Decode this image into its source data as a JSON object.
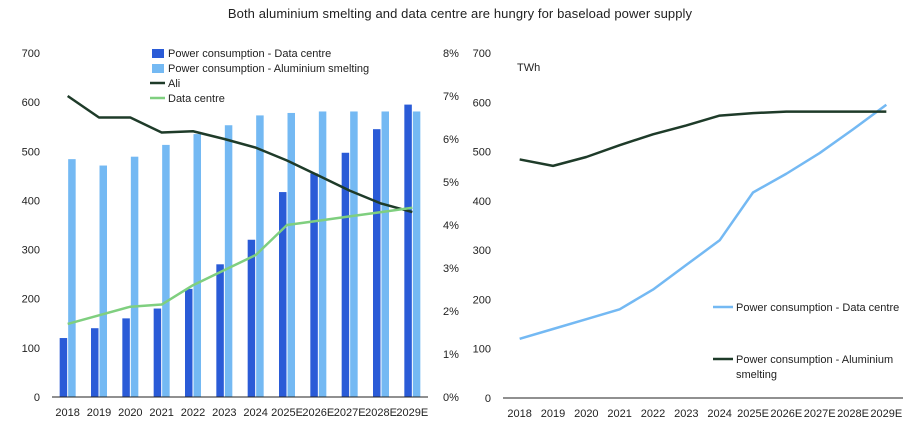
{
  "title": "Both aluminium smelting and data centre are hungry for baseload power supply",
  "colors": {
    "dc_bar": "#2a5bd7",
    "al_bar": "#74b9f3",
    "ali_line": "#1e3b29",
    "dc_line": "#7fcf7f",
    "right_dc_line": "#74b9f3",
    "right_al_line": "#1e3b29",
    "axis": "#222222"
  },
  "chart_data": [
    {
      "type": "bar",
      "categories": [
        "2018",
        "2019",
        "2020",
        "2021",
        "2022",
        "2023",
        "2024",
        "2025E",
        "2026E",
        "2027E",
        "2028E",
        "2029E"
      ],
      "ylim": [
        0,
        700
      ],
      "yticks": [
        "0",
        "100",
        "200",
        "300",
        "400",
        "500",
        "600",
        "700"
      ],
      "y2lim": [
        0,
        8
      ],
      "y2ticks": [
        "0%",
        "1%",
        "2%",
        "3%",
        "4%",
        "5%",
        "6%",
        "7%",
        "8%"
      ],
      "legend": {
        "dc_bar": "Power consumption - Data centre",
        "al_bar": "Power consumption - Aluminium smelting",
        "ali": "Ali",
        "dc": "Data centre"
      },
      "series": [
        {
          "name": "Power consumption - Data centre",
          "kind": "bar",
          "axis": "left",
          "values": [
            120,
            140,
            160,
            180,
            220,
            270,
            320,
            417,
            455,
            497,
            545,
            595
          ]
        },
        {
          "name": "Power consumption - Aluminium smelting",
          "kind": "bar",
          "axis": "left",
          "values": [
            484,
            471,
            489,
            513,
            535,
            553,
            573,
            578,
            581,
            581,
            581,
            581
          ]
        },
        {
          "name": "Ali",
          "kind": "line",
          "axis": "right",
          "values": [
            7.0,
            6.5,
            6.5,
            6.15,
            6.18,
            6.0,
            5.8,
            5.5,
            5.15,
            4.8,
            4.5,
            4.3
          ]
        },
        {
          "name": "Data centre",
          "kind": "line",
          "axis": "right",
          "values": [
            1.7,
            1.9,
            2.1,
            2.15,
            2.6,
            2.95,
            3.3,
            4.0,
            4.1,
            4.2,
            4.3,
            4.4
          ]
        }
      ]
    },
    {
      "type": "line",
      "unit": "TWh",
      "categories": [
        "2018",
        "2019",
        "2020",
        "2021",
        "2022",
        "2023",
        "2024",
        "2025E",
        "2026E",
        "2027E",
        "2028E",
        "2029E"
      ],
      "ylim": [
        0,
        700
      ],
      "yticks": [
        "0",
        "100",
        "200",
        "300",
        "400",
        "500",
        "600",
        "700"
      ],
      "series": [
        {
          "name": "Power consumption - Data centre",
          "values": [
            120,
            140,
            160,
            180,
            220,
            270,
            320,
            417,
            455,
            497,
            545,
            595
          ]
        },
        {
          "name": "Power consumption - Aluminium smelting",
          "values": [
            484,
            471,
            489,
            513,
            535,
            553,
            573,
            578,
            581,
            581,
            581,
            581
          ]
        }
      ],
      "legend": {
        "dc": "Power consumption - Data centre",
        "al_line1": "Power consumption - Aluminium",
        "al_line2": "smelting"
      }
    }
  ]
}
